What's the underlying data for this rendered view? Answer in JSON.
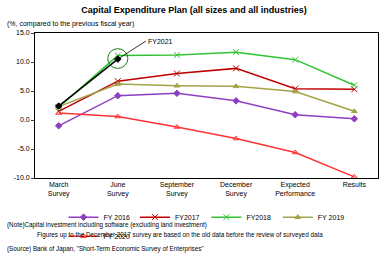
{
  "chart_data": {
    "type": "line",
    "title": "Capital Expenditure Plan (all sizes and all industries)",
    "y_label": "(%, compared to the previous fiscal year)",
    "categories": [
      "March Survey",
      "June Survey",
      "September Survey",
      "December Survey",
      "Expected Performance",
      "Results"
    ],
    "series": [
      {
        "name": "FY 2016",
        "color": "#8e3fc0",
        "marker": "diamond",
        "values": [
          -1.0,
          4.2,
          4.6,
          3.3,
          0.9,
          0.2
        ]
      },
      {
        "name": "FY2017",
        "color": "#c00000",
        "marker": "x",
        "values": [
          1.5,
          6.7,
          8.0,
          8.9,
          5.4,
          5.3
        ]
      },
      {
        "name": "FY2018",
        "color": "#33c233",
        "marker": "x",
        "values": [
          2.2,
          11.1,
          11.2,
          11.7,
          10.4,
          6.0
        ]
      },
      {
        "name": "FY 2019",
        "color": "#a3a34a",
        "marker": "triangle",
        "values": [
          2.3,
          6.2,
          5.9,
          5.8,
          4.9,
          1.5
        ]
      },
      {
        "name": "FY 2020",
        "color": "#ff3333",
        "marker": "triangle-open",
        "values": [
          1.2,
          0.6,
          -1.2,
          -3.2,
          -5.6,
          -9.8
        ]
      },
      {
        "name": "FY2021",
        "color": "#000000",
        "marker": "diamond",
        "legend": false,
        "values": [
          2.4,
          10.5,
          null,
          null,
          null,
          null
        ]
      }
    ],
    "ylim": [
      -10,
      15
    ],
    "yticks": [
      {
        "value": -10,
        "label": "-10.0"
      },
      {
        "value": -5,
        "label": "-5.0"
      },
      {
        "value": 0,
        "label": "0.0"
      },
      {
        "value": 5,
        "label": "5.0"
      },
      {
        "value": 10,
        "label": "10.0"
      },
      {
        "value": 15,
        "label": "15.0"
      }
    ],
    "grid": false,
    "legend": "bottom",
    "notes": [
      "(Note)Capital investment including software (excluding land investment)",
      "Figures up to the December 2017 survey are based on the old data before the review of surveyed data",
      "(Source) Bank of Japan, \"Short-Term Economic Survey of Enterprises\""
    ]
  }
}
